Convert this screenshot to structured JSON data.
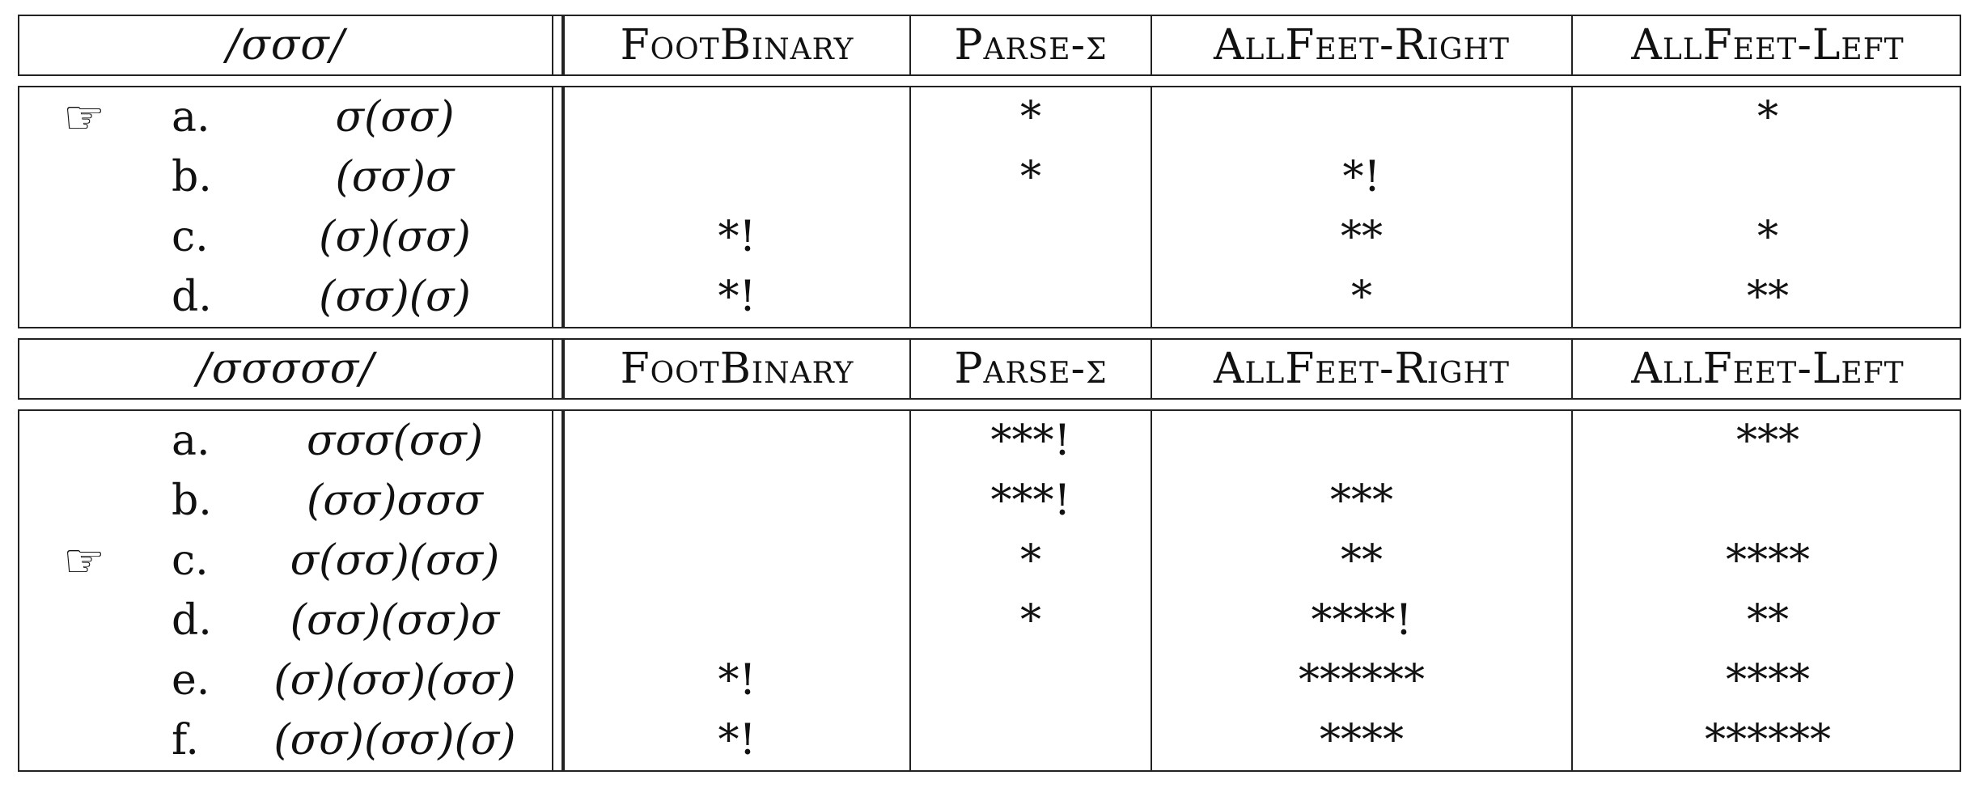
{
  "constraints": [
    "FootBinary",
    "Parse-σ",
    "AllFeet-Right",
    "AllFeet-Left"
  ],
  "tableaux": [
    {
      "input": "/σσσ/",
      "candidates": [
        {
          "label": "a.",
          "form": "σ(σσ)",
          "winner": true,
          "marks": [
            "",
            "*",
            "",
            "*"
          ]
        },
        {
          "label": "b.",
          "form": "(σσ)σ",
          "winner": false,
          "marks": [
            "",
            "*",
            "*!",
            ""
          ]
        },
        {
          "label": "c.",
          "form": "(σ)(σσ)",
          "winner": false,
          "marks": [
            "*!",
            "",
            "**",
            "*"
          ]
        },
        {
          "label": "d.",
          "form": "(σσ)(σ)",
          "winner": false,
          "marks": [
            "*!",
            "",
            "*",
            "**"
          ]
        }
      ]
    },
    {
      "input": "/σσσσσ/",
      "candidates": [
        {
          "label": "a.",
          "form": "σσσ(σσ)",
          "winner": false,
          "marks": [
            "",
            "***!",
            "",
            "***"
          ]
        },
        {
          "label": "b.",
          "form": "(σσ)σσσ",
          "winner": false,
          "marks": [
            "",
            "***!",
            "***",
            ""
          ]
        },
        {
          "label": "c.",
          "form": "σ(σσ)(σσ)",
          "winner": true,
          "marks": [
            "",
            "*",
            "**",
            "****"
          ]
        },
        {
          "label": "d.",
          "form": "(σσ)(σσ)σ",
          "winner": false,
          "marks": [
            "",
            "*",
            "****!",
            "**"
          ]
        },
        {
          "label": "e.",
          "form": "(σ)(σσ)(σσ)",
          "winner": false,
          "marks": [
            "*!",
            "",
            "******",
            "****"
          ]
        },
        {
          "label": "f.",
          "form": "(σσ)(σσ)(σ)",
          "winner": false,
          "marks": [
            "*!",
            "",
            "****",
            "******"
          ]
        }
      ]
    }
  ],
  "winner_icon": "pointing-hand-icon",
  "winner_glyph": "☞"
}
